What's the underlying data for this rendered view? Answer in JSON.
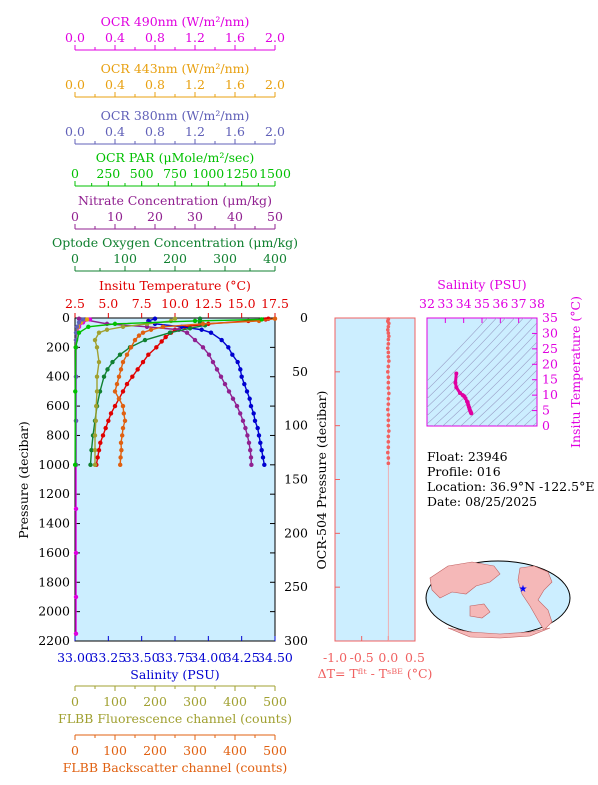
{
  "chart_data": [
    {
      "type": "line",
      "name": "main-profile",
      "ylabel": "Pressure (decibar)",
      "ylim": [
        2200,
        0
      ],
      "yticks": [
        0,
        200,
        400,
        600,
        800,
        1000,
        1200,
        1400,
        1600,
        1800,
        2000,
        2200
      ],
      "axes": [
        {
          "id": "ocr490",
          "label": "OCR 490nm (W/m²/nm)",
          "color": "#e000e0",
          "range": [
            0.0,
            2.0
          ],
          "ticks": [
            "0.0",
            "0.4",
            "0.8",
            "1.2",
            "1.6",
            "2.0"
          ]
        },
        {
          "id": "ocr443",
          "label": "OCR 443nm (W/m²/nm)",
          "color": "#e8a010",
          "range": [
            0.0,
            2.0
          ],
          "ticks": [
            "0.0",
            "0.4",
            "0.8",
            "1.2",
            "1.6",
            "2.0"
          ]
        },
        {
          "id": "ocr380",
          "label": "OCR 380nm (W/m²/nm)",
          "color": "#6060b8",
          "range": [
            0.0,
            2.0
          ],
          "ticks": [
            "0.0",
            "0.4",
            "0.8",
            "1.2",
            "1.6",
            "2.0"
          ]
        },
        {
          "id": "par",
          "label": "OCR PAR (μMole/m²/sec)",
          "color": "#00c000",
          "range": [
            0,
            1500
          ],
          "ticks": [
            "0",
            "250",
            "500",
            "750",
            "1000",
            "1250",
            "1500"
          ]
        },
        {
          "id": "nitrate",
          "label": "Nitrate Concentration (μm/kg)",
          "color": "#902090",
          "range": [
            0,
            50
          ],
          "ticks": [
            "0",
            "10",
            "20",
            "30",
            "40",
            "50"
          ]
        },
        {
          "id": "oxygen",
          "label": "Optode Oxygen Concentration (μm/kg)",
          "color": "#108030",
          "range": [
            0,
            400
          ],
          "ticks": [
            "0",
            "100",
            "200",
            "300",
            "400"
          ]
        },
        {
          "id": "temp",
          "label": "Insitu Temperature (°C)",
          "color": "#e00000",
          "range": [
            2.5,
            17.5
          ],
          "ticks": [
            "2.5",
            "5.0",
            "7.5",
            "10.0",
            "12.5",
            "15.0",
            "17.5"
          ]
        },
        {
          "id": "salinity",
          "label": "Salinity (PSU)",
          "color": "#0000d0",
          "range": [
            33.0,
            34.5
          ],
          "ticks": [
            "33.00",
            "33.25",
            "33.50",
            "33.75",
            "34.00",
            "34.25",
            "34.50"
          ]
        },
        {
          "id": "fluor",
          "label": "FLBB Fluorescence channel (counts)",
          "color": "#a0a030",
          "range": [
            0,
            500
          ],
          "ticks": [
            "0",
            "100",
            "200",
            "300",
            "400",
            "500"
          ]
        },
        {
          "id": "backscatter",
          "label": "FLBB Backscatter channel (counts)",
          "color": "#e06010",
          "range": [
            0,
            500
          ],
          "ticks": [
            "0",
            "100",
            "200",
            "300",
            "400",
            "500"
          ]
        }
      ],
      "series": [
        {
          "axis": "temp",
          "p": [
            5,
            10,
            20,
            40,
            60,
            80,
            100,
            130,
            160,
            200,
            250,
            300,
            350,
            400,
            450,
            500,
            550,
            600,
            650,
            700,
            750,
            800,
            850,
            900,
            950,
            1000
          ],
          "v": [
            17.0,
            16.8,
            15.5,
            12.5,
            10.7,
            10.0,
            9.7,
            9.3,
            9.0,
            8.6,
            8.0,
            7.6,
            7.2,
            6.8,
            6.4,
            6.1,
            5.8,
            5.5,
            5.2,
            5.0,
            4.8,
            4.6,
            4.4,
            4.3,
            4.2,
            4.1
          ]
        },
        {
          "axis": "salinity",
          "p": [
            5,
            20,
            40,
            60,
            80,
            100,
            150,
            200,
            250,
            300,
            350,
            400,
            450,
            500,
            550,
            600,
            650,
            700,
            750,
            800,
            850,
            900,
            950,
            1000
          ],
          "v": [
            33.6,
            33.55,
            33.6,
            33.8,
            33.95,
            34.02,
            34.1,
            34.15,
            34.18,
            34.22,
            34.24,
            34.25,
            34.27,
            34.29,
            34.31,
            34.32,
            34.34,
            34.35,
            34.37,
            34.38,
            34.39,
            34.4,
            34.41,
            34.42
          ]
        },
        {
          "axis": "nitrate",
          "p": [
            5,
            40,
            60,
            80,
            100,
            150,
            200,
            250,
            300,
            350,
            400,
            450,
            500,
            550,
            600,
            650,
            700,
            750,
            800,
            850,
            900,
            950,
            1000
          ],
          "v": [
            1,
            8,
            18,
            26,
            28,
            30,
            32,
            33.5,
            34.5,
            35.5,
            36.5,
            37.5,
            38.5,
            39.5,
            40.5,
            41.3,
            42,
            42.6,
            43.1,
            43.5,
            43.8,
            44.0,
            44.1
          ]
        },
        {
          "axis": "oxygen",
          "p": [
            5,
            30,
            50,
            70,
            100,
            150,
            200,
            250,
            300,
            350,
            400,
            500,
            600,
            700,
            800,
            900,
            1000
          ],
          "v": [
            250,
            250,
            260,
            230,
            190,
            140,
            110,
            90,
            75,
            65,
            58,
            50,
            44,
            40,
            36,
            33,
            31
          ]
        },
        {
          "axis": "backscatter",
          "p": [
            5,
            20,
            40,
            60,
            80,
            100,
            120,
            150,
            200,
            250,
            300,
            350,
            400,
            450,
            500,
            550,
            600,
            650,
            700,
            750,
            800,
            850,
            900,
            950,
            1000
          ],
          "v": [
            500,
            460,
            320,
            220,
            190,
            170,
            160,
            150,
            140,
            130,
            120,
            115,
            110,
            105,
            100,
            110,
            120,
            122,
            125,
            120,
            118,
            115,
            116,
            114,
            113
          ]
        },
        {
          "axis": "fluor",
          "p": [
            5,
            20,
            40,
            60,
            80,
            100,
            150,
            200,
            300,
            400,
            500,
            600,
            700,
            800,
            900,
            1000
          ],
          "v": [
            250,
            240,
            180,
            120,
            80,
            60,
            50,
            55,
            60,
            55,
            55,
            53,
            52,
            50,
            50,
            50
          ]
        },
        {
          "axis": "ocr490",
          "p": [
            10,
            30,
            60,
            100,
            150,
            200,
            400,
            700,
            1000,
            1300,
            1600,
            1900,
            2150
          ],
          "v": [
            0.15,
            0.08,
            0.04,
            0.02,
            0.01,
            0.01,
            0.01,
            0.01,
            0.01,
            0.01,
            0.01,
            0.01,
            0.01
          ]
        },
        {
          "axis": "ocr443",
          "p": [
            10,
            30,
            60,
            100,
            150,
            200,
            400,
            700,
            1000
          ],
          "v": [
            0.12,
            0.06,
            0.03,
            0.015,
            0.01,
            0.01,
            0.01,
            0.01,
            0.01
          ]
        },
        {
          "axis": "ocr380",
          "p": [
            10,
            30,
            60,
            100,
            150,
            200,
            400,
            700,
            1000
          ],
          "v": [
            0.08,
            0.04,
            0.02,
            0.01,
            0.01,
            0.01,
            0.01,
            0.01,
            0.01
          ]
        },
        {
          "axis": "par",
          "p": [
            10,
            20,
            40,
            60,
            100,
            200,
            500,
            1000
          ],
          "v": [
            1400,
            900,
            300,
            100,
            30,
            5,
            2,
            1
          ]
        }
      ]
    },
    {
      "type": "scatter",
      "name": "delta-t",
      "ylabel": "OCR-504 Pressure (decibar)",
      "xlabel": "ΔT= Tᶠˡᵗ - Tˢᴮᴱ (°C)",
      "xlim": [
        -1.0,
        0.5
      ],
      "ylim": [
        300,
        0
      ],
      "xticks": [
        "-1.0",
        "-0.5",
        "0.0",
        "0.5"
      ],
      "yticks": [
        0,
        50,
        100,
        150,
        200,
        250,
        300
      ],
      "color": "#f06060",
      "p": [
        1,
        3,
        5,
        8,
        11,
        14,
        17,
        20,
        24,
        28,
        32,
        36,
        40,
        45,
        50,
        55,
        60,
        65,
        70,
        75,
        80,
        85,
        90,
        95,
        100,
        105,
        110,
        115,
        120,
        125,
        130,
        135
      ],
      "v": [
        0.0,
        -0.01,
        0.01,
        0.0,
        -0.01,
        0.0,
        0.01,
        0.0,
        0.0,
        -0.01,
        0.0,
        0.0,
        0.01,
        0.0,
        -0.01,
        0.0,
        0.0,
        0.0,
        0.01,
        0.0,
        0.0,
        -0.01,
        0.0,
        0.0,
        0.0,
        0.01,
        0.0,
        0.0,
        0.0,
        -0.01,
        0.0,
        0.0
      ]
    },
    {
      "type": "scatter",
      "name": "ts-diagram",
      "xlabel": "Salinity (PSU)",
      "ylabel": "Insitu Temperature (°C)",
      "xlim": [
        32,
        38
      ],
      "ylim": [
        0,
        35
      ],
      "xticks": [
        "32",
        "33",
        "34",
        "35",
        "36",
        "37",
        "38"
      ],
      "yticks": [
        "0",
        "5",
        "10",
        "15",
        "20",
        "25",
        "30",
        "35"
      ],
      "color": "#e000a0",
      "points": [
        [
          33.6,
          17.0
        ],
        [
          33.55,
          14.0
        ],
        [
          33.6,
          12.5
        ],
        [
          33.8,
          10.7
        ],
        [
          33.95,
          10.0
        ],
        [
          34.02,
          9.7
        ],
        [
          34.1,
          9.0
        ],
        [
          34.18,
          8.0
        ],
        [
          34.22,
          7.6
        ],
        [
          34.25,
          6.8
        ],
        [
          34.29,
          6.1
        ],
        [
          34.32,
          5.5
        ],
        [
          34.35,
          5.0
        ],
        [
          34.38,
          4.6
        ],
        [
          34.4,
          4.3
        ],
        [
          34.42,
          4.1
        ]
      ]
    }
  ],
  "info": {
    "float": "Float:  23946",
    "profile": "Profile:  016",
    "location": "Location:  36.9°N  -122.5°E",
    "date": "Date:  08/25/2025"
  },
  "map": {
    "marker_color": "#0000ff",
    "land_color": "#f5b8b8",
    "ocean_color": "#cceeff"
  }
}
